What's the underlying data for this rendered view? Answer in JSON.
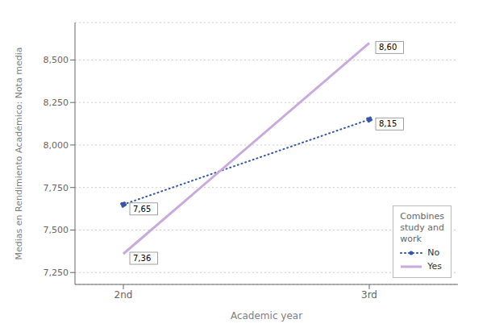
{
  "chart_data": {
    "type": "line",
    "categories": [
      "2nd",
      "3rd"
    ],
    "series": [
      {
        "name": "No",
        "color": "#3355aa",
        "values": [
          7.65,
          8.15
        ],
        "value_labels": [
          "7,65",
          "8,15"
        ],
        "marker": "circle",
        "line_style": "dotted"
      },
      {
        "name": "Yes",
        "color": "#c8aadd",
        "values": [
          7.36,
          8.6
        ],
        "value_labels": [
          "7,36",
          "8,60"
        ],
        "marker": "none",
        "line_style": "solid"
      }
    ],
    "xlabel": "Academic year",
    "ylabel": "Medias en Rendimiento Académico: Nota media",
    "ylim": [
      7.18,
      8.72
    ],
    "yticks": [
      {
        "value": 7.25,
        "label": "7,250"
      },
      {
        "value": 7.5,
        "label": "7,500"
      },
      {
        "value": 7.75,
        "label": "7,750"
      },
      {
        "value": 8.0,
        "label": "8,000"
      },
      {
        "value": 8.25,
        "label": "8,250"
      },
      {
        "value": 8.5,
        "label": "8,500"
      }
    ],
    "grid": true,
    "legend": "lower right",
    "legend_title": "Combines\nstudy and\nwork",
    "data_labels": true
  }
}
